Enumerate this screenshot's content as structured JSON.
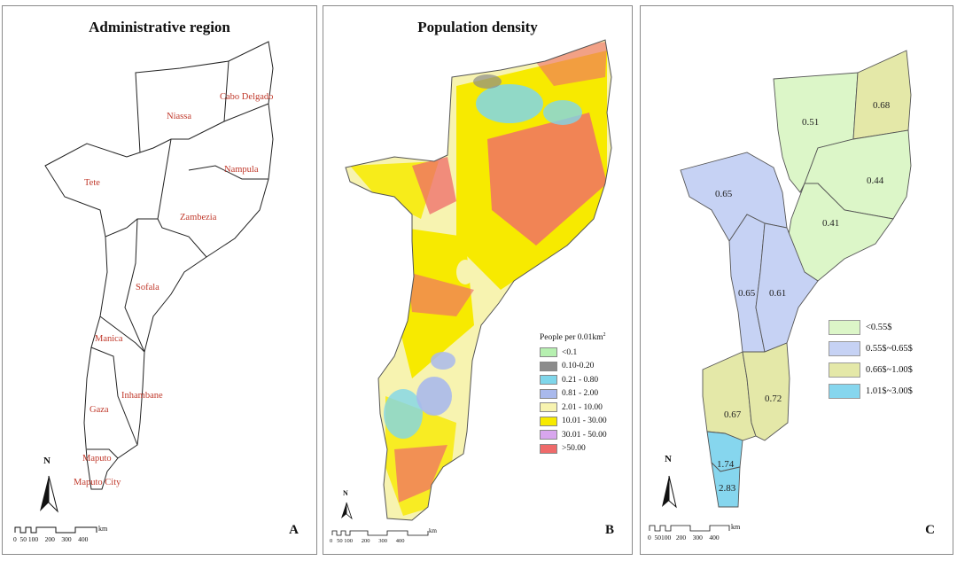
{
  "panels": {
    "a": {
      "title": "Administrative region",
      "label": "A",
      "regions": [
        "Niassa",
        "Cabo Delgado",
        "Nampula",
        "Tete",
        "Zambezia",
        "Sofala",
        "Manica",
        "Inhambane",
        "Gaza",
        "Maputo",
        "Maputo City"
      ]
    },
    "b": {
      "title": "Population density",
      "label": "B",
      "legend_title": "People per 0.01km",
      "legend_sup": "2",
      "legend": [
        {
          "label": "<0.1",
          "color": "#b6f0b0"
        },
        {
          "label": "0.10-0.20",
          "color": "#8c8c8c"
        },
        {
          "label": "0.21 - 0.80",
          "color": "#7fd6ea"
        },
        {
          "label": "0.81 - 2.00",
          "color": "#a9b9ec"
        },
        {
          "label": "2.01 - 10.00",
          "color": "#f7f3b0"
        },
        {
          "label": "10.01 - 30.00",
          "color": "#f7ea00"
        },
        {
          "label": "30.01 - 50.00",
          "color": "#d8a6ee"
        },
        {
          "label": ">50.00",
          "color": "#ef6a6a"
        }
      ]
    },
    "c": {
      "label": "C",
      "values": {
        "niassa": "0.51",
        "cabo_delgado": "0.68",
        "nampula": "0.44",
        "zambezia": "0.41",
        "tete": "0.65",
        "manica": "0.65",
        "sofala": "0.61",
        "gaza": "0.67",
        "inhambane": "0.72",
        "maputo": "1.74",
        "maputo_city": "2.83"
      },
      "legend": [
        {
          "label": "<0.55$",
          "color": "#dcf6c8"
        },
        {
          "label": "0.55$~0.65$",
          "color": "#c6d2f4"
        },
        {
          "label": "0.66$~1.00$",
          "color": "#e4e8a8"
        },
        {
          "label": "1.01$~3.00$",
          "color": "#86d6ee"
        }
      ]
    }
  },
  "compass": "N",
  "scale": {
    "ticks": [
      "0",
      "50",
      "100",
      "200",
      "300",
      "400"
    ],
    "unit": "km"
  }
}
